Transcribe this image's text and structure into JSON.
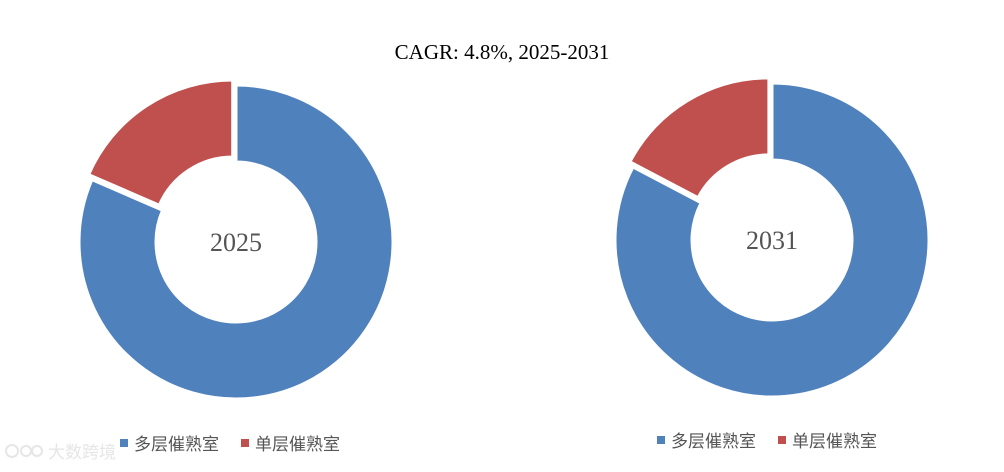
{
  "chart_data": {
    "type": "pie",
    "title": "CAGR:   4.8%, 2025-2031",
    "series_colors": [
      "#4F81BD",
      "#C0504D"
    ],
    "legend": [
      "多层催熟室",
      "单层催熟室"
    ],
    "charts": [
      {
        "center_label": "2025",
        "slices": [
          {
            "label": "多层催熟室",
            "value": 81.5
          },
          {
            "label": "单层催熟室",
            "value": 18.5
          }
        ]
      },
      {
        "center_label": "2031",
        "slices": [
          {
            "label": "多层催熟室",
            "value": 82.7
          },
          {
            "label": "单层催熟室",
            "value": 17.3
          }
        ]
      }
    ]
  },
  "watermark": "大数跨境"
}
